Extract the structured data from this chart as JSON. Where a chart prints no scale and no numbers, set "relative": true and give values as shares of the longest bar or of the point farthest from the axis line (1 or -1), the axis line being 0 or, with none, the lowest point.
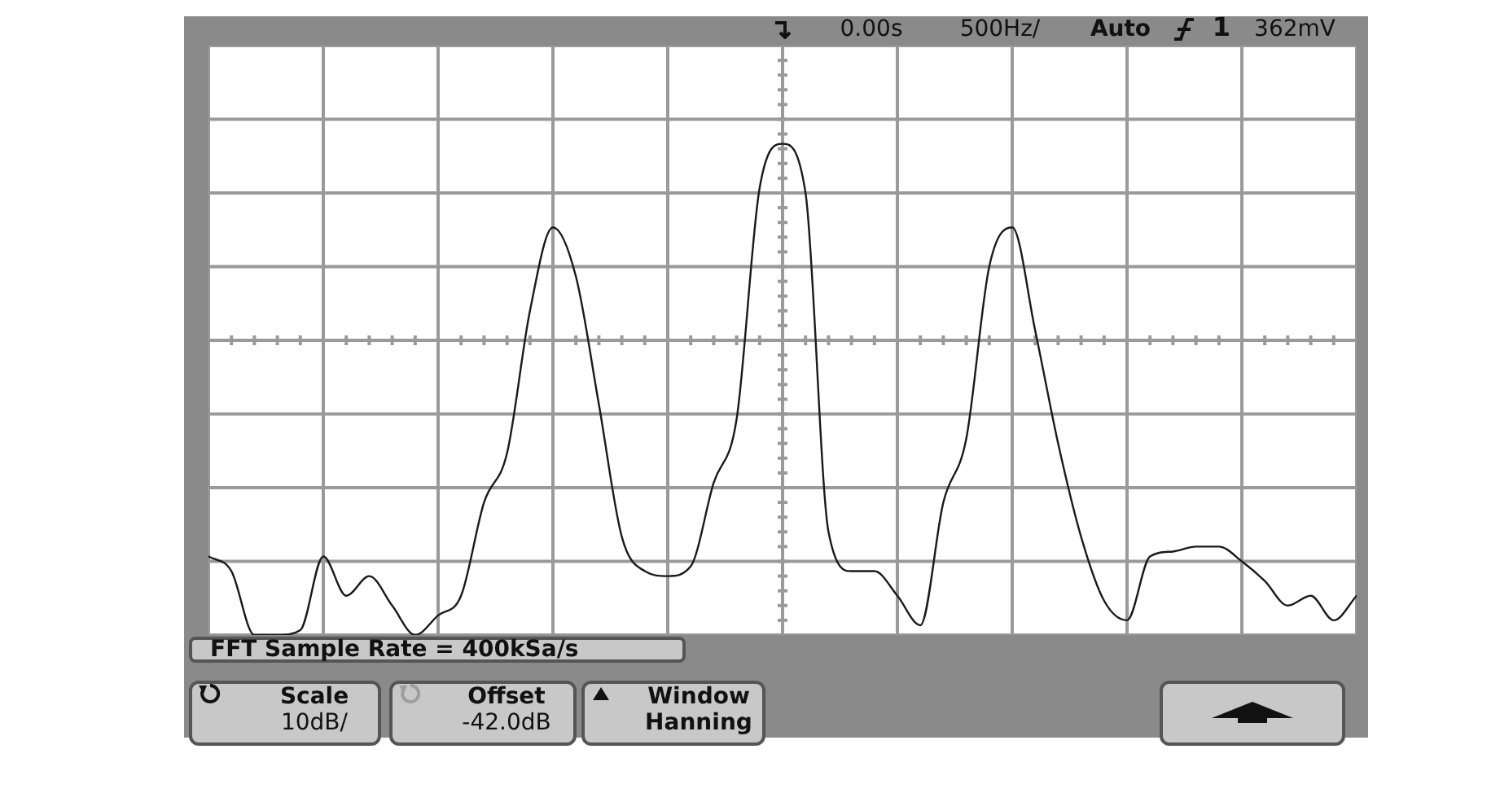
{
  "chart_data": {
    "type": "line",
    "relative": true,
    "grid": true,
    "marker": "none",
    "line_style": "solid",
    "categories": [
      null,
      null,
      null,
      null,
      null,
      null,
      null,
      null,
      null,
      null,
      null,
      null,
      null,
      null,
      null,
      null,
      null,
      null,
      null,
      null,
      null,
      null,
      null,
      null,
      null,
      null,
      null,
      null,
      null,
      null,
      null,
      null,
      null,
      null,
      null,
      null,
      null,
      null,
      null,
      null,
      null,
      null,
      null,
      null,
      null,
      null,
      null,
      null,
      null,
      null,
      null
    ],
    "series": [
      {
        "color": "#1a1a1a",
        "values": [
          0.16,
          0.13,
          0,
          0,
          0.01,
          0.16,
          0.08,
          0.12,
          0.06,
          0,
          0.04,
          0.08,
          0.27,
          0.37,
          0.66,
          0.83,
          0.73,
          0.47,
          0.2,
          0.13,
          0.12,
          0.14,
          0.31,
          0.44,
          0.91,
          1,
          0.9,
          0.21,
          0.13,
          0.13,
          0.08,
          0.02,
          0.27,
          0.4,
          0.75,
          0.83,
          0.62,
          0.39,
          0.2,
          0.07,
          0.03,
          0.16,
          0.17,
          0.18,
          0.18,
          0.15,
          0.11,
          0.06,
          0.08,
          0.03,
          0.08
        ]
      }
    ],
    "annotations": [
      "0.00s",
      "500Hz/",
      "Auto",
      "1",
      "362mV",
      "FFT Sample Rate = 400kSa/s",
      "Scale",
      "10dB/",
      "Offset",
      "-42.0dB",
      "Window",
      "Hanning"
    ]
  }
}
